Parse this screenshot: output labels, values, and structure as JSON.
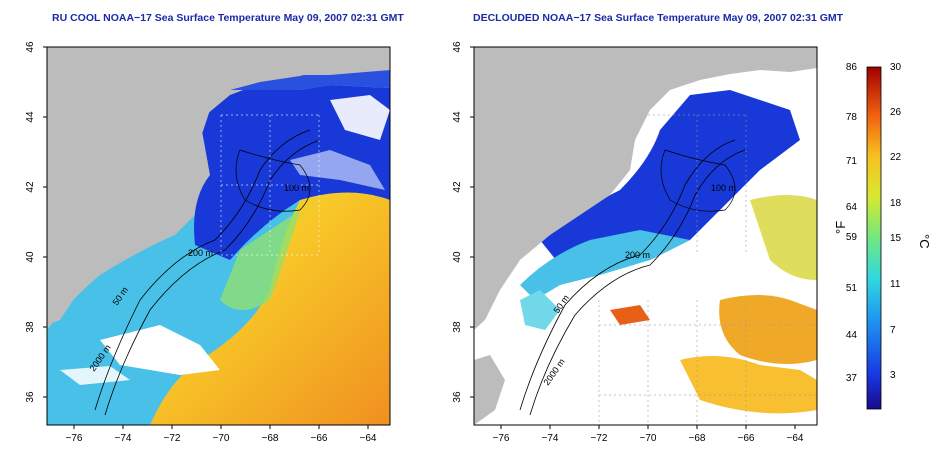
{
  "maps": [
    {
      "title": "RU COOL NOAA−17 Sea Surface Temperature May 09, 2007 02:31 GMT",
      "contour_labels": [
        "200 m",
        "50 m",
        "2000 m",
        "100 m"
      ]
    },
    {
      "title": "DECLOUDED NOAA−17 Sea Surface Temperature May 09, 2007 02:31 GMT",
      "contour_labels": [
        "200 m",
        "50 m",
        "2000 m",
        "100 m"
      ]
    }
  ],
  "axes": {
    "x_ticks": [
      "−76",
      "−74",
      "−72",
      "−70",
      "−68",
      "−66",
      "−64"
    ],
    "y_ticks": [
      "46",
      "44",
      "42",
      "40",
      "38",
      "36"
    ]
  },
  "colorbar": {
    "fahrenheit_ticks": [
      "86",
      "78",
      "71",
      "64",
      "59",
      "51",
      "44",
      "37"
    ],
    "celsius_ticks": [
      "30",
      "26",
      "22",
      "18",
      "15",
      "11",
      "7",
      "3"
    ],
    "fahrenheit_unit": "°F",
    "celsius_unit": "°C"
  },
  "colors": {
    "land": "#bcbcbc",
    "cloud": "#ffffff",
    "cold": "#1030d0",
    "warm": "#f0a020",
    "title": "#1c2aa8"
  }
}
